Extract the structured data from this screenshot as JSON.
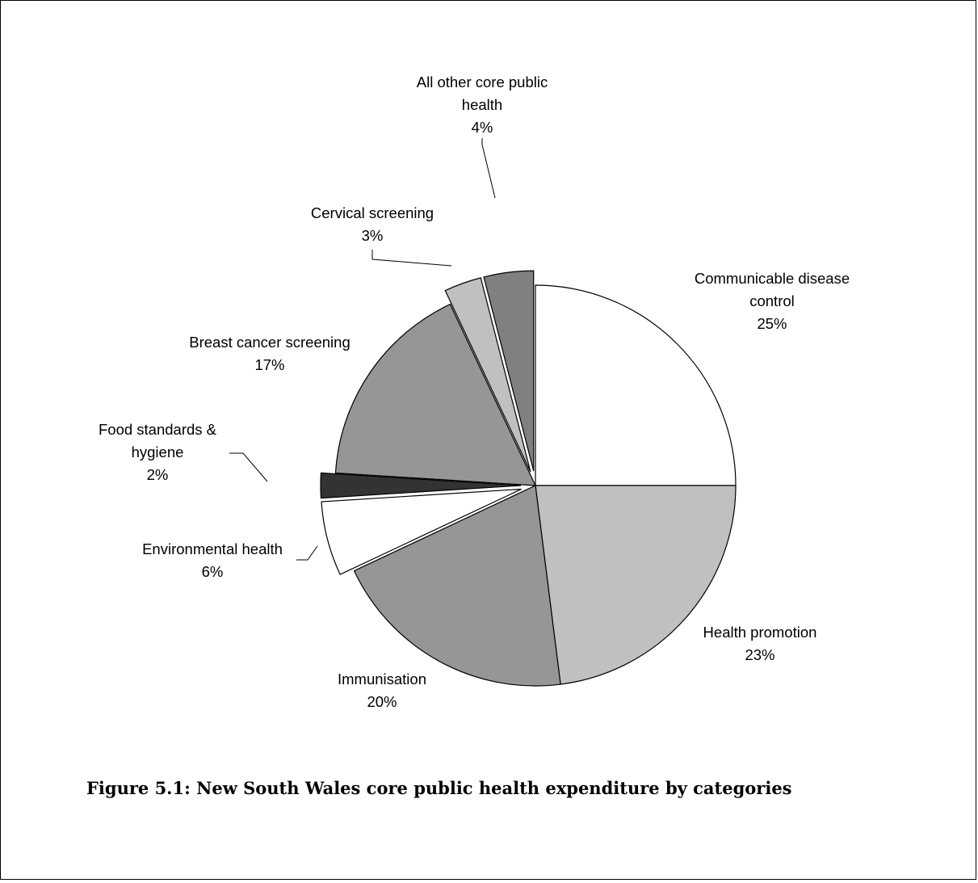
{
  "caption": "Figure 5.1: New South Wales core public health expenditure by categories",
  "chart_data": {
    "type": "pie",
    "title": "",
    "slices": [
      {
        "label_lines": [
          "Communicable disease",
          "control"
        ],
        "value": 25,
        "value_label": "25%",
        "color": "#ffffff",
        "exploded": false
      },
      {
        "label_lines": [
          "Health promotion"
        ],
        "value": 23,
        "value_label": "23%",
        "color": "#c0c0c0",
        "exploded": false
      },
      {
        "label_lines": [
          "Immunisation"
        ],
        "value": 20,
        "value_label": "20%",
        "color": "#969696",
        "exploded": false
      },
      {
        "label_lines": [
          "Environmental health"
        ],
        "value": 6,
        "value_label": "6%",
        "color": "#ffffff",
        "exploded": true
      },
      {
        "label_lines": [
          "Food standards &",
          "hygiene"
        ],
        "value": 2,
        "value_label": "2%",
        "color": "#333333",
        "exploded": true
      },
      {
        "label_lines": [
          "Breast cancer screening"
        ],
        "value": 17,
        "value_label": "17%",
        "color": "#969696",
        "exploded": false
      },
      {
        "label_lines": [
          "Cervical screening"
        ],
        "value": 3,
        "value_label": "3%",
        "color": "#c0c0c0",
        "exploded": true
      },
      {
        "label_lines": [
          "All other core public",
          "health"
        ],
        "value": 4,
        "value_label": "4%",
        "color": "#808080",
        "exploded": true
      }
    ]
  }
}
